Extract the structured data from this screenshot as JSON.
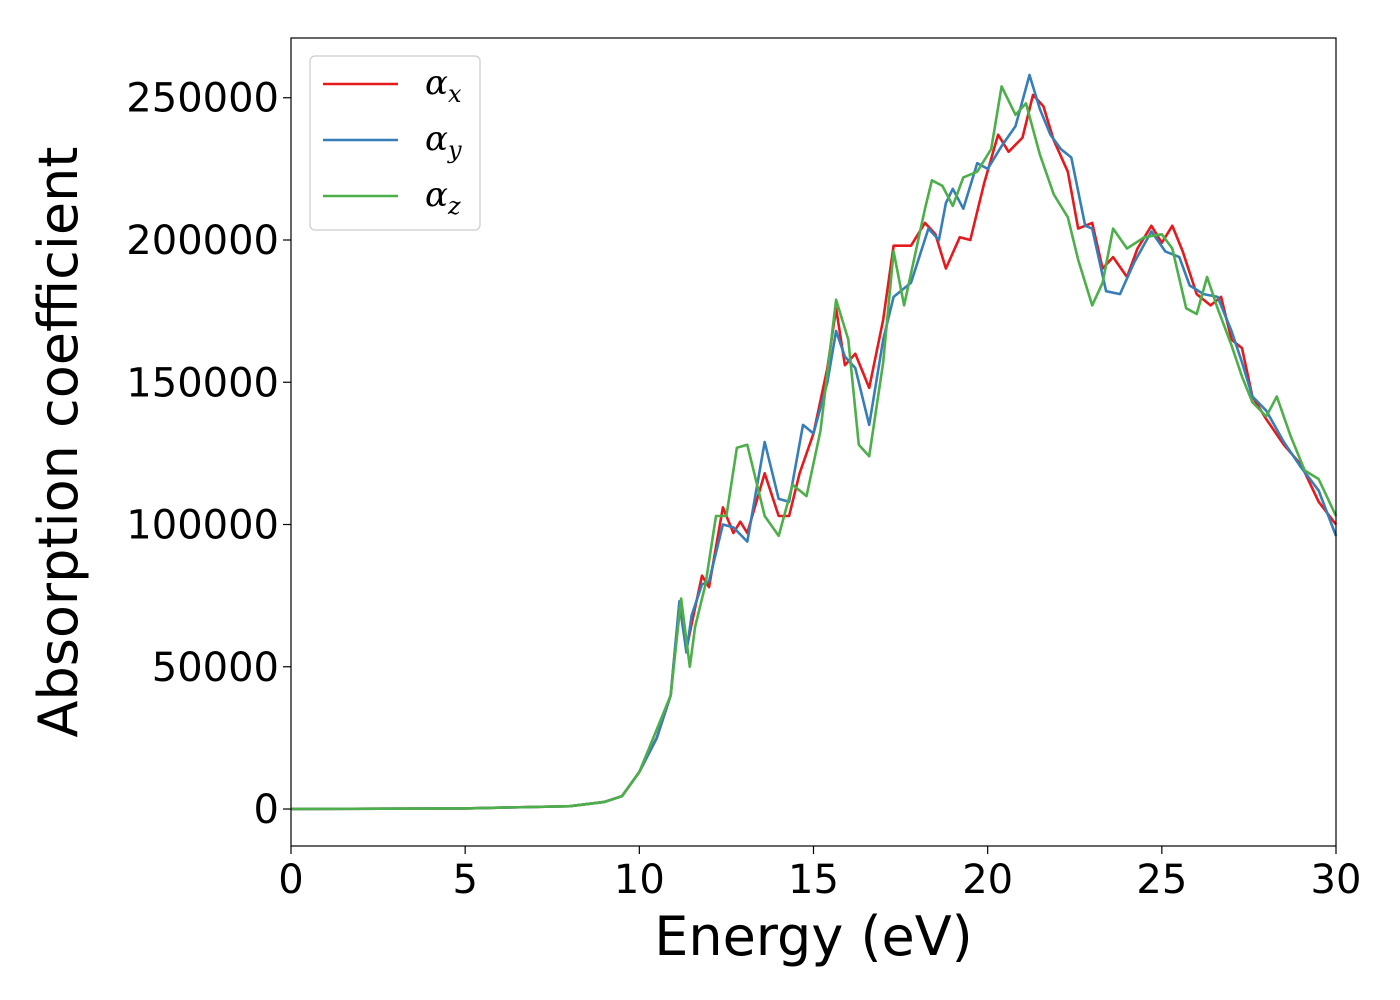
{
  "chart_data": {
    "type": "line",
    "title": "",
    "xlabel": "Energy (eV)",
    "ylabel": "Absorption coefficient",
    "xlim": [
      0,
      30
    ],
    "ylim": [
      -13000,
      271000
    ],
    "xticks": [
      0,
      5,
      10,
      15,
      20,
      25,
      30
    ],
    "yticks": [
      0,
      50000,
      100000,
      150000,
      200000,
      250000
    ],
    "grid": false,
    "legend_position": "top-left",
    "series": [
      {
        "name": "α",
        "subscript": "x",
        "color": "#e41a1c",
        "points": [
          [
            0,
            0
          ],
          [
            5,
            200
          ],
          [
            8,
            1000
          ],
          [
            9,
            2500
          ],
          [
            9.5,
            4500
          ],
          [
            10,
            13000
          ],
          [
            10.5,
            25000
          ],
          [
            10.9,
            40000
          ],
          [
            11.15,
            72000
          ],
          [
            11.35,
            56000
          ],
          [
            11.5,
            65000
          ],
          [
            11.8,
            82000
          ],
          [
            12,
            78000
          ],
          [
            12.4,
            106000
          ],
          [
            12.7,
            97000
          ],
          [
            12.9,
            101000
          ],
          [
            13.1,
            97000
          ],
          [
            13.6,
            118000
          ],
          [
            14,
            103000
          ],
          [
            14.3,
            103000
          ],
          [
            14.6,
            118000
          ],
          [
            15,
            132000
          ],
          [
            15.4,
            155000
          ],
          [
            15.65,
            176000
          ],
          [
            15.9,
            156000
          ],
          [
            16.2,
            160000
          ],
          [
            16.6,
            148000
          ],
          [
            17,
            172000
          ],
          [
            17.3,
            198000
          ],
          [
            17.8,
            198000
          ],
          [
            18.2,
            206000
          ],
          [
            18.5,
            202000
          ],
          [
            18.8,
            190000
          ],
          [
            19.2,
            201000
          ],
          [
            19.5,
            200000
          ],
          [
            19.9,
            220000
          ],
          [
            20.3,
            237000
          ],
          [
            20.6,
            231000
          ],
          [
            21,
            236000
          ],
          [
            21.3,
            251000
          ],
          [
            21.6,
            247000
          ],
          [
            21.9,
            235000
          ],
          [
            22.3,
            224000
          ],
          [
            22.6,
            204000
          ],
          [
            23,
            206000
          ],
          [
            23.3,
            190000
          ],
          [
            23.6,
            194000
          ],
          [
            24,
            187000
          ],
          [
            24.3,
            197000
          ],
          [
            24.7,
            205000
          ],
          [
            25,
            199000
          ],
          [
            25.3,
            205000
          ],
          [
            25.6,
            196000
          ],
          [
            26,
            181000
          ],
          [
            26.4,
            177000
          ],
          [
            26.7,
            180000
          ],
          [
            27,
            165000
          ],
          [
            27.3,
            162000
          ],
          [
            27.6,
            145000
          ],
          [
            28,
            137000
          ],
          [
            28.5,
            128000
          ],
          [
            29,
            121000
          ],
          [
            29.5,
            108000
          ],
          [
            30,
            100000
          ]
        ]
      },
      {
        "name": "α",
        "subscript": "y",
        "color": "#377eb8",
        "points": [
          [
            0,
            0
          ],
          [
            5,
            200
          ],
          [
            8,
            1000
          ],
          [
            9,
            2500
          ],
          [
            9.5,
            4500
          ],
          [
            10,
            13000
          ],
          [
            10.5,
            25000
          ],
          [
            10.9,
            40000
          ],
          [
            11.15,
            73000
          ],
          [
            11.35,
            55000
          ],
          [
            11.5,
            68000
          ],
          [
            11.8,
            79000
          ],
          [
            12,
            80000
          ],
          [
            12.4,
            100000
          ],
          [
            12.7,
            99000
          ],
          [
            13.1,
            94000
          ],
          [
            13.6,
            129000
          ],
          [
            14,
            109000
          ],
          [
            14.3,
            108000
          ],
          [
            14.7,
            135000
          ],
          [
            15,
            132000
          ],
          [
            15.4,
            150000
          ],
          [
            15.65,
            168000
          ],
          [
            15.9,
            159000
          ],
          [
            16.2,
            155000
          ],
          [
            16.6,
            135000
          ],
          [
            17,
            165000
          ],
          [
            17.3,
            180000
          ],
          [
            17.8,
            185000
          ],
          [
            18.3,
            204000
          ],
          [
            18.6,
            200000
          ],
          [
            18.8,
            213000
          ],
          [
            19,
            218000
          ],
          [
            19.3,
            211000
          ],
          [
            19.7,
            227000
          ],
          [
            20,
            225000
          ],
          [
            20.4,
            233000
          ],
          [
            20.8,
            240000
          ],
          [
            21.2,
            258000
          ],
          [
            21.5,
            246000
          ],
          [
            21.8,
            237000
          ],
          [
            22.1,
            232000
          ],
          [
            22.4,
            229000
          ],
          [
            22.8,
            205000
          ],
          [
            23,
            204000
          ],
          [
            23.4,
            182000
          ],
          [
            23.8,
            181000
          ],
          [
            24.2,
            192000
          ],
          [
            24.7,
            203000
          ],
          [
            25.1,
            196000
          ],
          [
            25.5,
            194000
          ],
          [
            25.8,
            184000
          ],
          [
            26.2,
            181000
          ],
          [
            26.6,
            180000
          ],
          [
            27,
            168000
          ],
          [
            27.3,
            157000
          ],
          [
            27.6,
            145000
          ],
          [
            28,
            140000
          ],
          [
            28.5,
            129000
          ],
          [
            29,
            120000
          ],
          [
            29.5,
            112000
          ],
          [
            30,
            96000
          ]
        ]
      },
      {
        "name": "α",
        "subscript": "z",
        "color": "#4daf4a",
        "points": [
          [
            0,
            0
          ],
          [
            5,
            200
          ],
          [
            8,
            1000
          ],
          [
            9,
            2500
          ],
          [
            9.5,
            4500
          ],
          [
            10,
            13000
          ],
          [
            10.5,
            28000
          ],
          [
            10.9,
            40000
          ],
          [
            11.2,
            74000
          ],
          [
            11.45,
            50000
          ],
          [
            11.6,
            64000
          ],
          [
            11.9,
            79000
          ],
          [
            12.2,
            103000
          ],
          [
            12.5,
            103000
          ],
          [
            12.8,
            127000
          ],
          [
            13.1,
            128000
          ],
          [
            13.6,
            103000
          ],
          [
            14,
            96000
          ],
          [
            14.4,
            114000
          ],
          [
            14.8,
            110000
          ],
          [
            15.2,
            133000
          ],
          [
            15.65,
            179000
          ],
          [
            16,
            165000
          ],
          [
            16.3,
            128000
          ],
          [
            16.6,
            124000
          ],
          [
            17,
            157000
          ],
          [
            17.3,
            196000
          ],
          [
            17.6,
            177000
          ],
          [
            18.2,
            211000
          ],
          [
            18.4,
            221000
          ],
          [
            18.7,
            219000
          ],
          [
            19,
            212000
          ],
          [
            19.3,
            222000
          ],
          [
            19.7,
            224000
          ],
          [
            20.1,
            232000
          ],
          [
            20.4,
            254000
          ],
          [
            20.8,
            244000
          ],
          [
            21.1,
            248000
          ],
          [
            21.5,
            230000
          ],
          [
            21.9,
            216000
          ],
          [
            22.3,
            208000
          ],
          [
            22.6,
            193000
          ],
          [
            23,
            177000
          ],
          [
            23.3,
            185000
          ],
          [
            23.6,
            204000
          ],
          [
            24,
            197000
          ],
          [
            24.5,
            201000
          ],
          [
            25,
            202000
          ],
          [
            25.3,
            197000
          ],
          [
            25.7,
            176000
          ],
          [
            26,
            174000
          ],
          [
            26.3,
            187000
          ],
          [
            26.6,
            176000
          ],
          [
            27,
            163000
          ],
          [
            27.3,
            152000
          ],
          [
            27.6,
            143000
          ],
          [
            28,
            138000
          ],
          [
            28.3,
            145000
          ],
          [
            28.7,
            131000
          ],
          [
            29.1,
            119000
          ],
          [
            29.5,
            116000
          ],
          [
            30,
            103000
          ]
        ]
      }
    ]
  }
}
